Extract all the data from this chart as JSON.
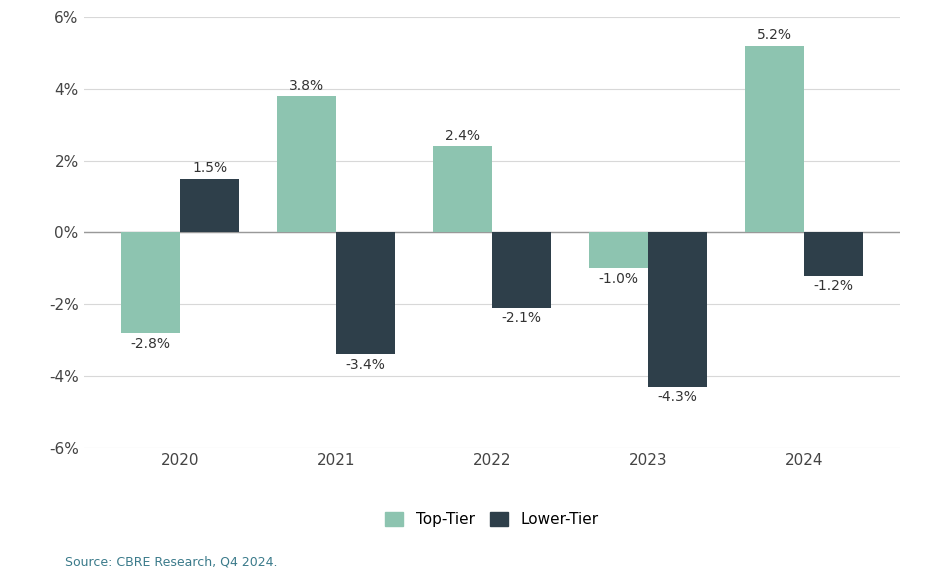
{
  "years": [
    "2020",
    "2021",
    "2022",
    "2023",
    "2024"
  ],
  "top_tier": [
    -2.8,
    3.8,
    2.4,
    -1.0,
    5.2
  ],
  "lower_tier": [
    1.5,
    -3.4,
    -2.1,
    -4.3,
    -1.2
  ],
  "top_tier_color": "#8dc4b0",
  "lower_tier_color": "#2e3f4a",
  "background_color": "#ffffff",
  "ylim": [
    -6,
    6
  ],
  "yticks": [
    -6,
    -4,
    -2,
    0,
    2,
    4,
    6
  ],
  "ytick_labels": [
    "-6%",
    "-4%",
    "-2%",
    "0%",
    "2%",
    "4%",
    "6%"
  ],
  "legend_top_tier": "Top-Tier",
  "legend_lower_tier": "Lower-Tier",
  "source_text": "Source: CBRE Research, Q4 2024.",
  "bar_width": 0.38,
  "label_fontsize": 10,
  "axis_fontsize": 11,
  "legend_fontsize": 11,
  "source_fontsize": 9,
  "source_color": "#3a7a8a",
  "grid_color": "#d8d8d8",
  "zero_line_color": "#999999",
  "tick_color": "#444444"
}
